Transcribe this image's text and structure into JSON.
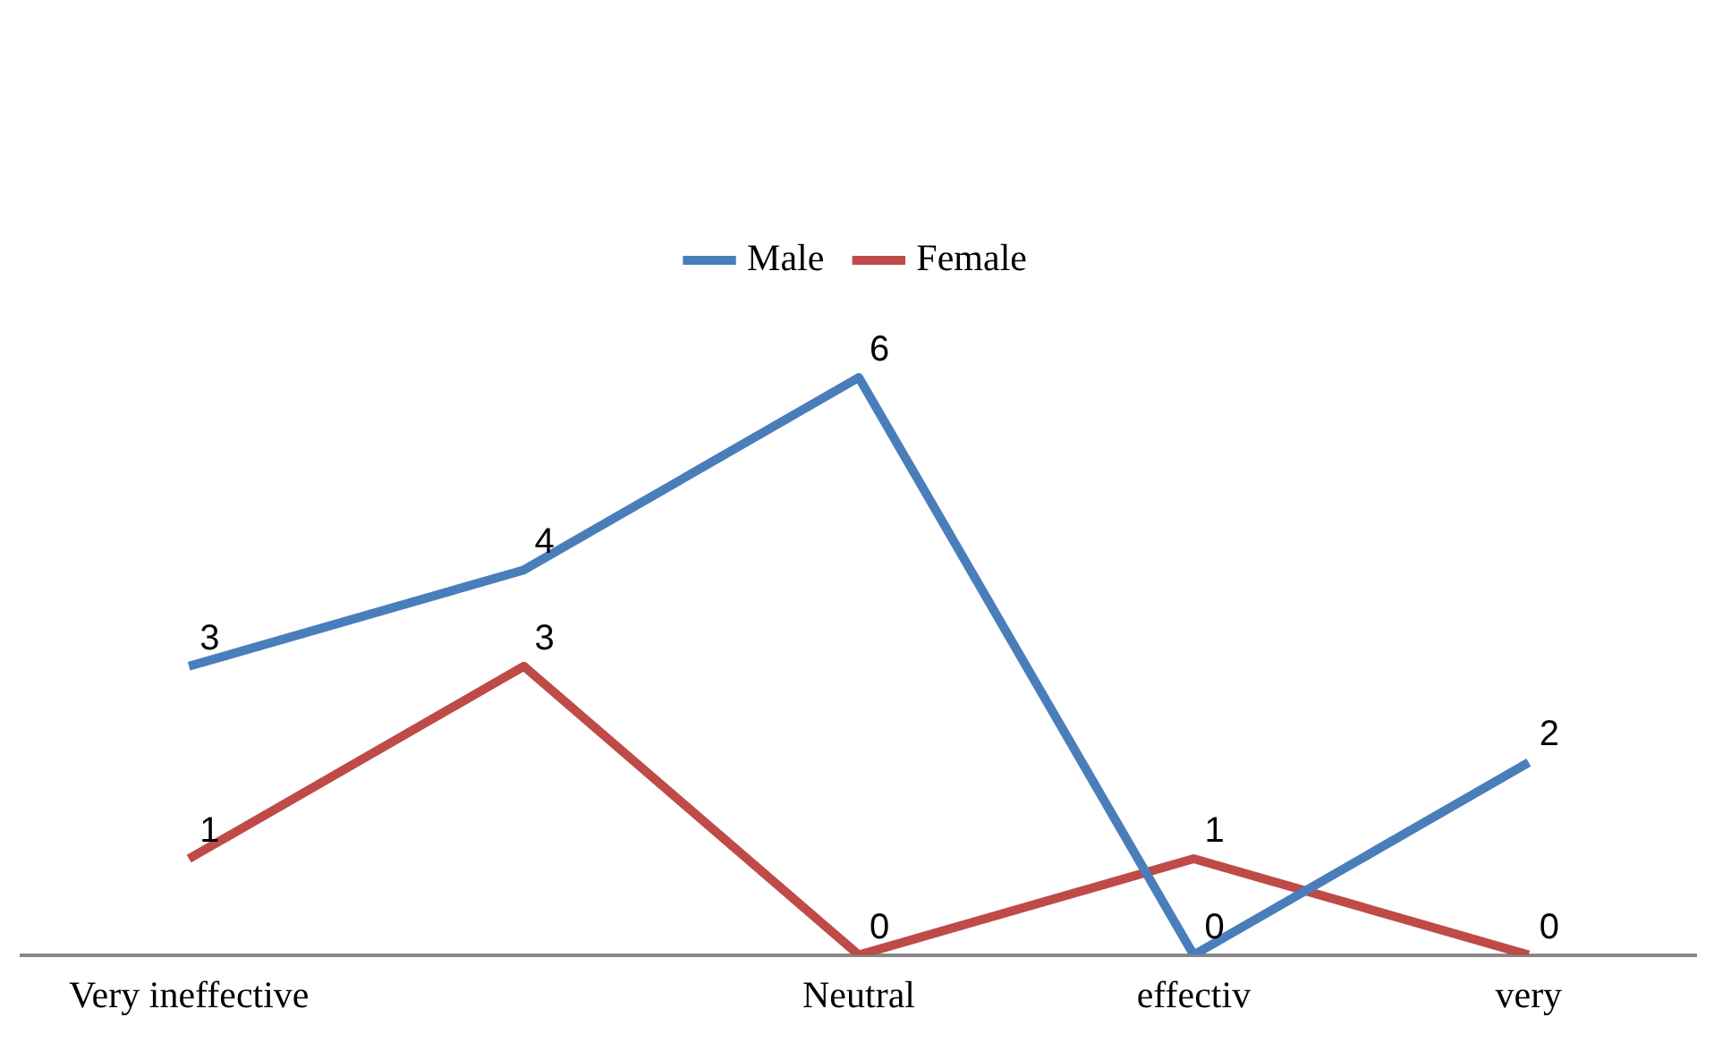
{
  "chart_data": {
    "type": "line",
    "data_labels": true,
    "categories": [
      "Very ineffective",
      null,
      "Neutral",
      "effectiv",
      "very"
    ],
    "legend": "top",
    "series": [
      {
        "name": "Male",
        "color": "#4a7ebb",
        "values": [
          3,
          4,
          6,
          0,
          2
        ]
      },
      {
        "name": "Female",
        "color": "#be4b48",
        "values": [
          1,
          3,
          0,
          1,
          0
        ]
      }
    ]
  }
}
